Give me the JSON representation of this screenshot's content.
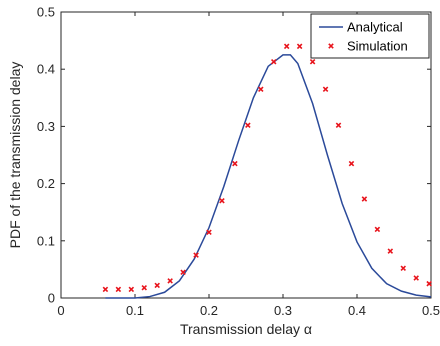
{
  "chart_data": {
    "type": "line",
    "title": "",
    "xlabel": "Transmission delay α",
    "ylabel": "PDF of the transmission delay",
    "xlim": [
      0,
      0.5
    ],
    "ylim": [
      0,
      0.5
    ],
    "xticks": [
      0,
      0.1,
      0.2,
      0.3,
      0.4,
      0.5
    ],
    "yticks": [
      0,
      0.1,
      0.2,
      0.3,
      0.4,
      0.5
    ],
    "xtick_labels": [
      "0",
      "0.1",
      "0.2",
      "0.3",
      "0.4",
      "0.5"
    ],
    "ytick_labels": [
      "0",
      "0.1",
      "0.2",
      "0.3",
      "0.4",
      "0.5"
    ],
    "grid": false,
    "legend_position": "top-right",
    "series": [
      {
        "name": "Analytical",
        "kind": "line",
        "color": "#2b4a9a",
        "x": [
          0.06,
          0.08,
          0.1,
          0.12,
          0.14,
          0.16,
          0.18,
          0.2,
          0.22,
          0.24,
          0.26,
          0.28,
          0.3,
          0.31,
          0.32,
          0.34,
          0.36,
          0.38,
          0.4,
          0.42,
          0.44,
          0.46,
          0.48,
          0.5
        ],
        "y": [
          0.0,
          0.0,
          0.0,
          0.0025,
          0.01,
          0.03,
          0.068,
          0.123,
          0.195,
          0.275,
          0.35,
          0.405,
          0.425,
          0.425,
          0.41,
          0.34,
          0.25,
          0.165,
          0.098,
          0.052,
          0.025,
          0.012,
          0.005,
          0.002
        ]
      },
      {
        "name": "Simulation",
        "kind": "scatter",
        "color": "#e8141c",
        "x": [
          0.06,
          0.0775,
          0.095,
          0.1125,
          0.13,
          0.1475,
          0.165,
          0.1825,
          0.2,
          0.2175,
          0.235,
          0.2525,
          0.27,
          0.2875,
          0.305,
          0.3225,
          0.34,
          0.3575,
          0.375,
          0.3925,
          0.41,
          0.4275,
          0.445,
          0.4625,
          0.48,
          0.4975
        ],
        "y": [
          0.015,
          0.015,
          0.015,
          0.018,
          0.022,
          0.03,
          0.045,
          0.075,
          0.115,
          0.17,
          0.235,
          0.302,
          0.365,
          0.413,
          0.44,
          0.44,
          0.413,
          0.365,
          0.302,
          0.235,
          0.173,
          0.12,
          0.082,
          0.052,
          0.035,
          0.025
        ]
      }
    ]
  }
}
